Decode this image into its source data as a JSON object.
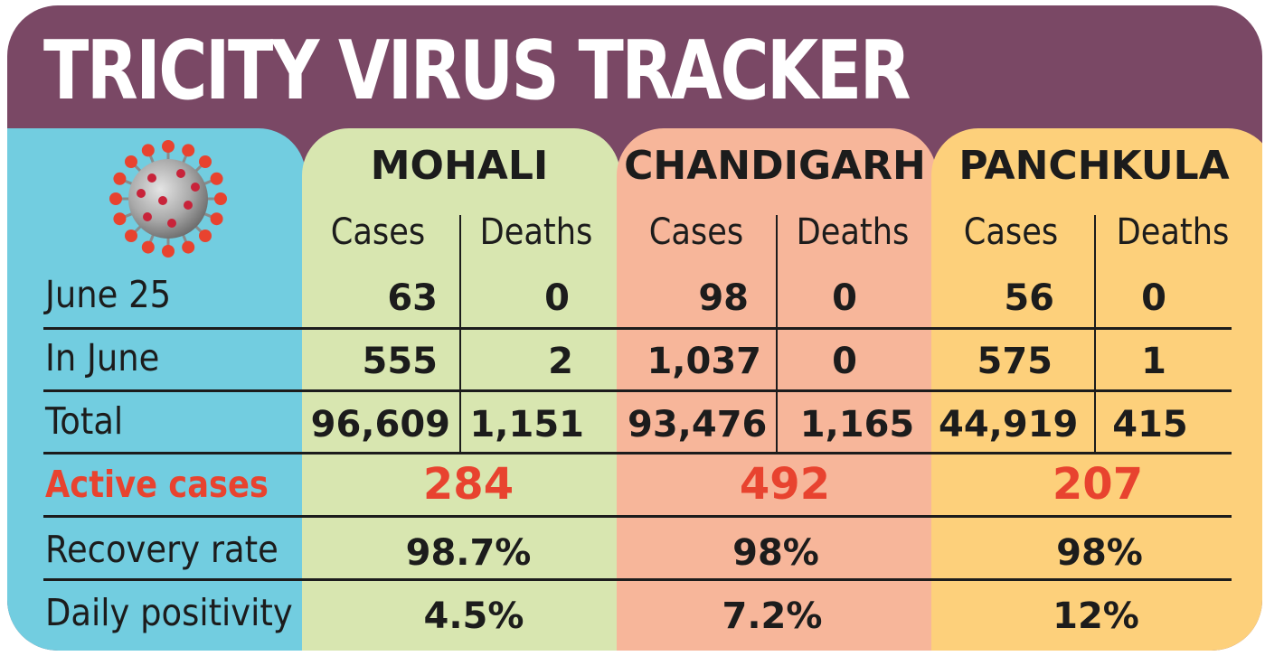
{
  "title": "TRICITY VIRUS TRACKER",
  "colors": {
    "frame": "#7a4865",
    "labels_panel": "#72cde0",
    "mohali_panel": "#d8e6b0",
    "chandigarh_panel": "#f7b69a",
    "panchkula_panel": "#fdd07b",
    "accent_red": "#e8432f"
  },
  "icon": "coronavirus-icon",
  "sub_headers": {
    "cases": "Cases",
    "deaths": "Deaths"
  },
  "row_labels": {
    "june25": "June 25",
    "in_june": "In June",
    "total": "Total",
    "active": "Active cases",
    "recovery": "Recovery rate",
    "positivity": "Daily positivity"
  },
  "cities": [
    {
      "name": "MOHALI",
      "june25": {
        "cases": "63",
        "deaths": "0"
      },
      "in_june": {
        "cases": "555",
        "deaths": "2"
      },
      "total": {
        "cases": "96,609",
        "deaths": "1,151"
      },
      "active": "284",
      "recovery": "98.7%",
      "positivity": "4.5%"
    },
    {
      "name": "CHANDIGARH",
      "june25": {
        "cases": "98",
        "deaths": "0"
      },
      "in_june": {
        "cases": "1,037",
        "deaths": "0"
      },
      "total": {
        "cases": "93,476",
        "deaths": "1,165"
      },
      "active": "492",
      "recovery": "98%",
      "positivity": "7.2%"
    },
    {
      "name": "PANCHKULA",
      "june25": {
        "cases": "56",
        "deaths": "0"
      },
      "in_june": {
        "cases": "575",
        "deaths": "1"
      },
      "total": {
        "cases": "44,919",
        "deaths": "415"
      },
      "active": "207",
      "recovery": "98%",
      "positivity": "12%"
    }
  ]
}
